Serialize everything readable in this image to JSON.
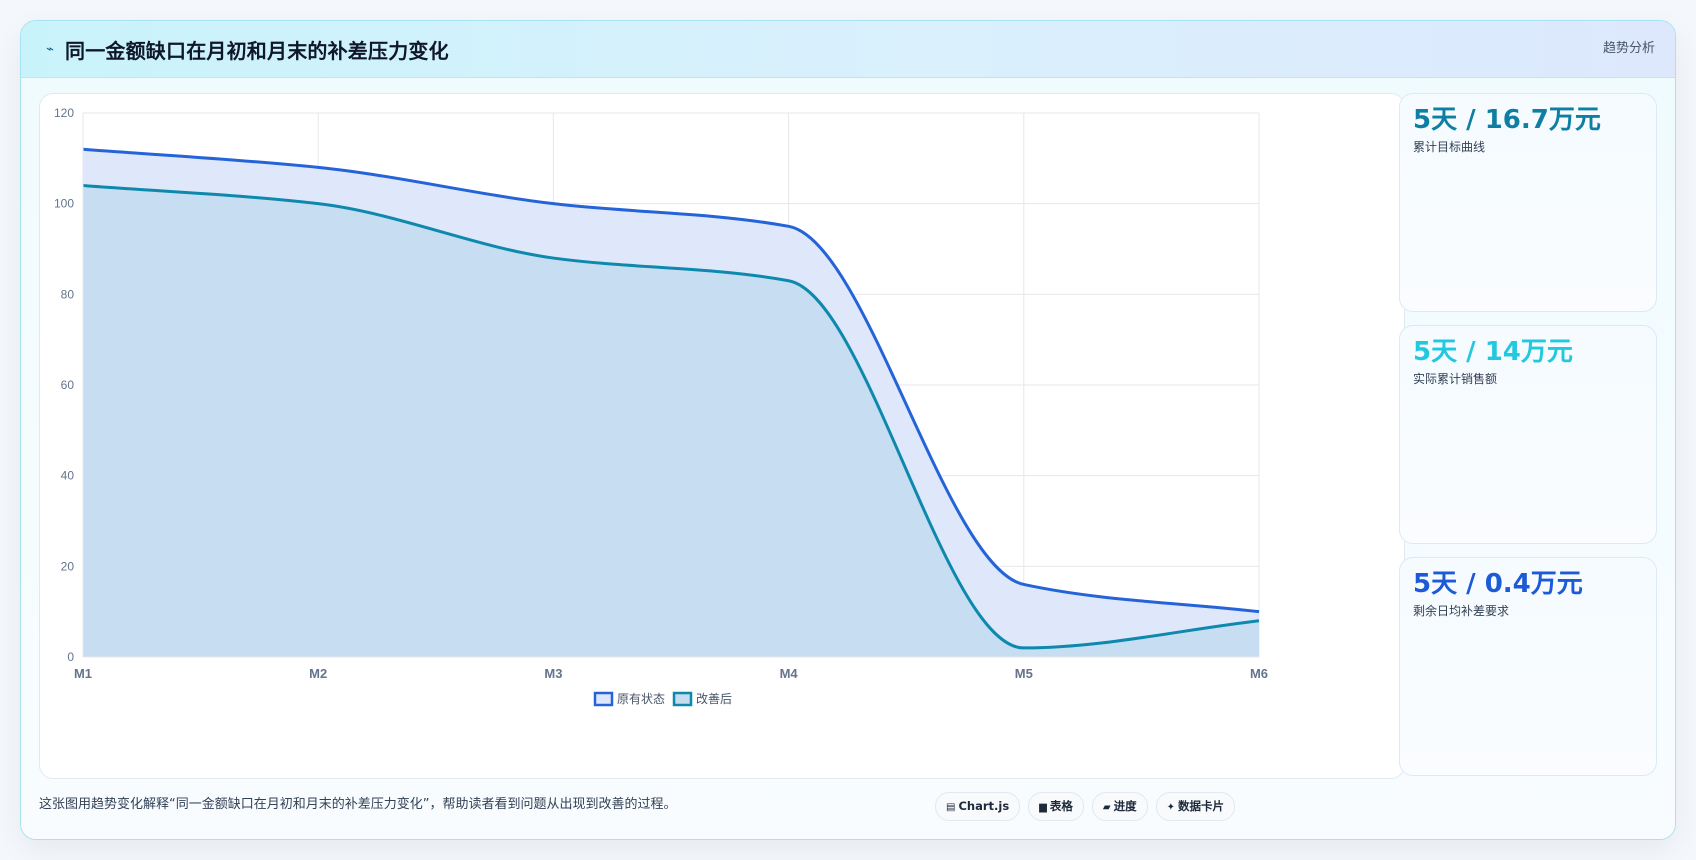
{
  "header": {
    "icon": "trend-icon",
    "title": "同一金额缺口在月初和月末的补差压力变化",
    "right_label": "趋势分析"
  },
  "stats": [
    {
      "value": "5天 / 16.7万元",
      "label": "累计目标曲线",
      "color": "#0e7fa3"
    },
    {
      "value": "5天 / 14万元",
      "label": "实际累计销售额",
      "color": "#22c7e0"
    },
    {
      "value": "5天 / 0.4万元",
      "label": "剩余日均补差要求",
      "color": "#1d5ad8"
    }
  ],
  "caption": "这张图用趋势变化解释“同一金额缺口在月初和月末的补差压力变化”，帮助读者看到问题从出现到改善的过程。",
  "chips": [
    {
      "icon": "chart-icon",
      "glyph": "▤",
      "label": "Chart.js"
    },
    {
      "icon": "table-icon",
      "glyph": "▆",
      "label": "表格"
    },
    {
      "icon": "progress-icon",
      "glyph": "▰",
      "label": "进度"
    },
    {
      "icon": "card-icon",
      "glyph": "✦",
      "label": "数据卡片"
    }
  ],
  "chart_data": {
    "type": "area",
    "categories": [
      "M1",
      "M2",
      "M3",
      "M4",
      "M5",
      "M6"
    ],
    "ylim": [
      0,
      120
    ],
    "yticks": [
      0,
      20,
      40,
      60,
      80,
      100,
      120
    ],
    "grid": true,
    "legend_position": "bottom",
    "series": [
      {
        "name": "原有状态",
        "values": [
          112,
          108,
          100,
          95,
          16,
          10
        ],
        "color": "#2563d8",
        "fill": "#dde7fb"
      },
      {
        "name": "改善后",
        "values": [
          104,
          100,
          88,
          83,
          2,
          8
        ],
        "color": "#0e89ad",
        "fill": "#c5dcf1"
      }
    ]
  }
}
